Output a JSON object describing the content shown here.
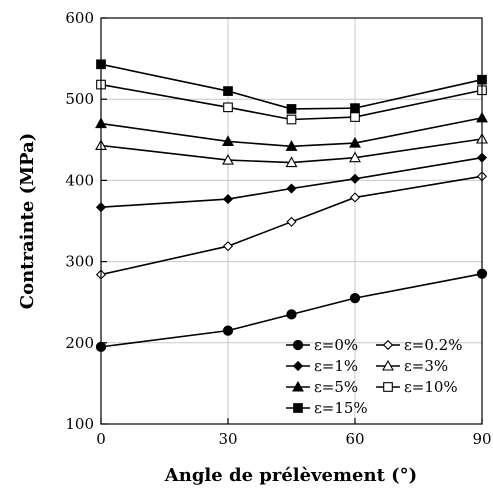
{
  "chart_data": {
    "type": "line",
    "title": "",
    "xlabel": "Angle de prélèvement (°)",
    "ylabel": "Contrainte (MPa)",
    "xlim": [
      0,
      90
    ],
    "ylim": [
      100,
      600
    ],
    "xticks": [
      0,
      30,
      60,
      90
    ],
    "yticks": [
      100,
      200,
      300,
      400,
      500,
      600
    ],
    "grid": true,
    "legend_position": "bottom-right",
    "series": [
      {
        "name": "ε=0%",
        "marker": "circle",
        "x": [
          0,
          30,
          45,
          60,
          90
        ],
        "values": [
          195,
          215,
          235,
          255,
          285
        ]
      },
      {
        "name": "ε=0.2%",
        "marker": "diamond-open",
        "x": [
          0,
          30,
          45,
          60,
          90
        ],
        "values": [
          284,
          319,
          349,
          379,
          405
        ]
      },
      {
        "name": "ε=1%",
        "marker": "diamond",
        "x": [
          0,
          30,
          45,
          60,
          90
        ],
        "values": [
          367,
          377,
          390,
          402,
          428
        ]
      },
      {
        "name": "ε=3%",
        "marker": "triangle-open",
        "x": [
          0,
          30,
          45,
          60,
          90
        ],
        "values": [
          443,
          425,
          422,
          428,
          451
        ]
      },
      {
        "name": "ε=5%",
        "marker": "triangle",
        "x": [
          0,
          30,
          45,
          60,
          90
        ],
        "values": [
          470,
          448,
          442,
          446,
          477
        ]
      },
      {
        "name": "ε=10%",
        "marker": "square-open",
        "x": [
          0,
          30,
          45,
          60,
          90
        ],
        "values": [
          518,
          490,
          475,
          478,
          511
        ]
      },
      {
        "name": "ε=15%",
        "marker": "square",
        "x": [
          0,
          30,
          45,
          60,
          90
        ],
        "values": [
          543,
          510,
          488,
          489,
          524
        ]
      }
    ]
  }
}
